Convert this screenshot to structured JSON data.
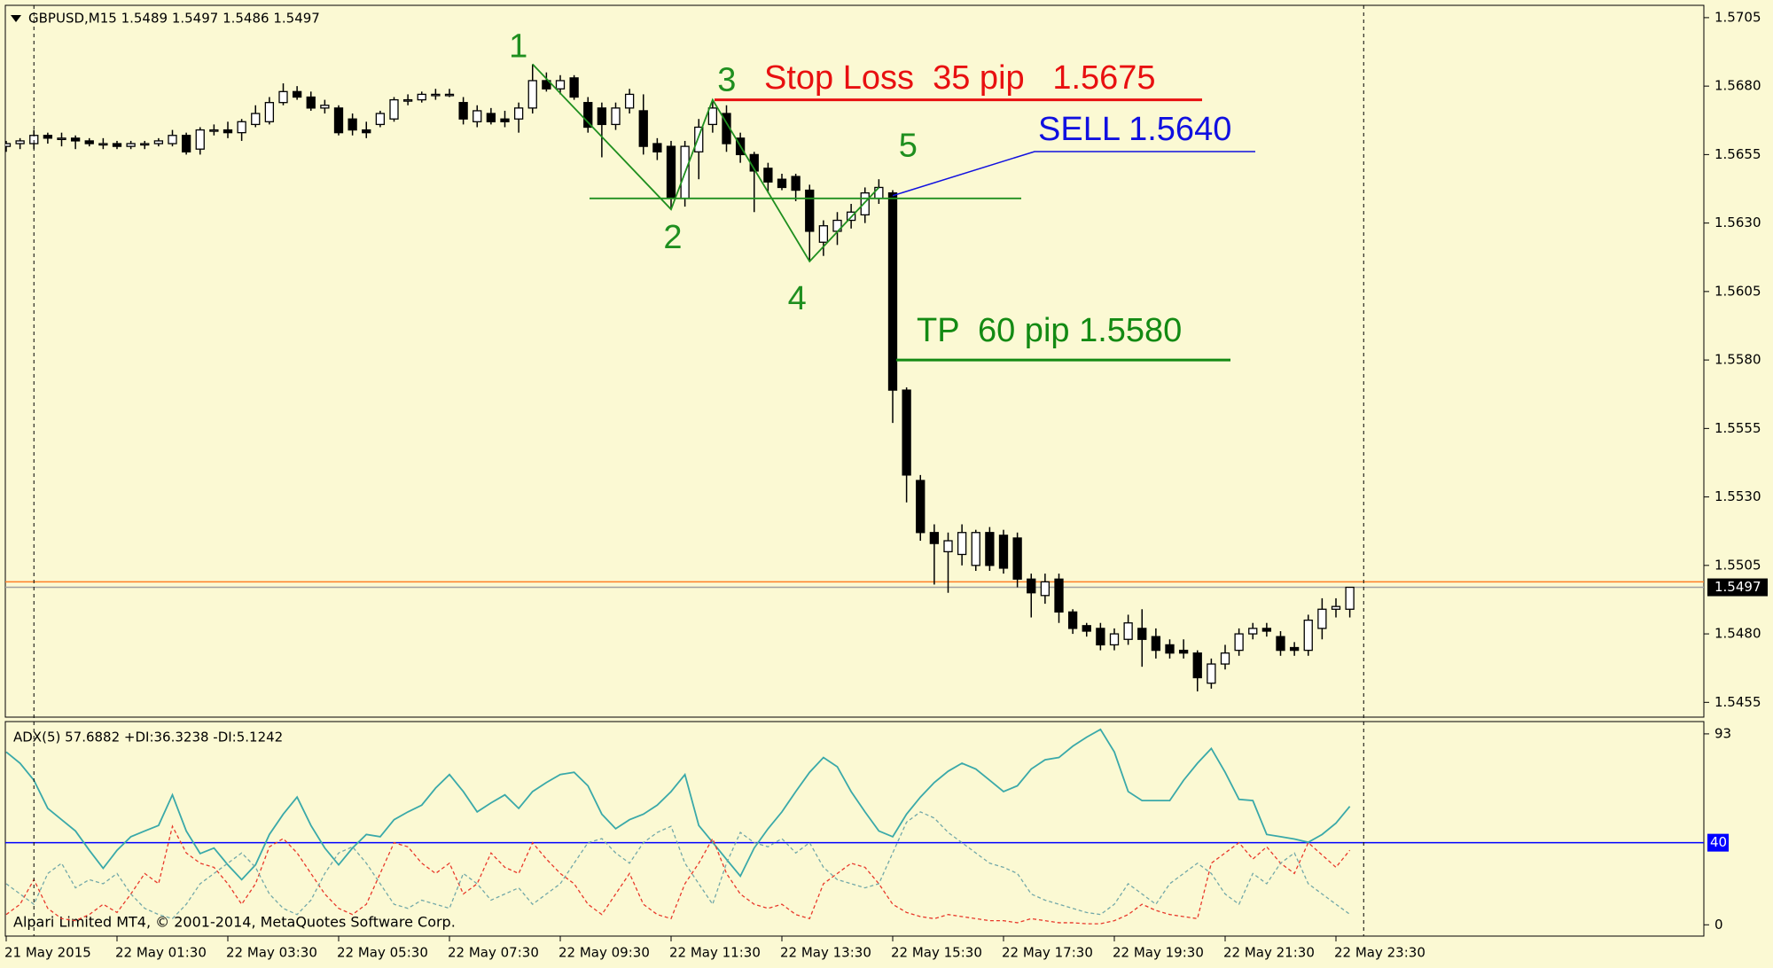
{
  "watermark": "Alpari Limited MT4, © 2001-2014, MetaQuotes Software Corp.",
  "chart_data": [
    {
      "type": "candlestick",
      "title": "GBPUSD,M15  1.5489 1.5497 1.5486 1.5497",
      "categories": [
        "21 May 2015",
        null,
        null,
        null,
        null,
        null,
        null,
        null,
        "22 May 01:30",
        null,
        null,
        null,
        null,
        null,
        null,
        null,
        "22 May 03:30",
        null,
        null,
        null,
        null,
        null,
        null,
        null,
        "22 May 05:30",
        null,
        null,
        null,
        null,
        null,
        null,
        null,
        "22 May 07:30",
        null,
        null,
        null,
        null,
        null,
        null,
        null,
        "22 May 09:30",
        null,
        null,
        null,
        null,
        null,
        null,
        null,
        "22 May 11:30",
        null,
        null,
        null,
        null,
        null,
        null,
        null,
        "22 May 13:30",
        null,
        null,
        null,
        null,
        null,
        null,
        null,
        "22 May 15:30",
        null,
        null,
        null,
        null,
        null,
        null,
        null,
        "22 May 17:30",
        null,
        null,
        null,
        null,
        null,
        null,
        null,
        "22 May 19:30",
        null,
        null,
        null,
        null,
        null,
        null,
        null,
        "22 May 21:30",
        null,
        null,
        null,
        null,
        null,
        null,
        null,
        "22 May 23:30",
        null
      ],
      "open": [
        1.5658,
        1.5659,
        1.5659,
        1.5662,
        1.5661,
        1.5661,
        1.566,
        1.5659,
        1.5659,
        1.5658,
        1.5659,
        1.5659,
        1.5659,
        1.5662,
        1.5657,
        1.5664,
        1.5664,
        1.5663,
        1.5666,
        1.5667,
        1.5674,
        1.5678,
        1.5676,
        1.5672,
        1.5672,
        1.5668,
        1.5664,
        1.5666,
        1.5668,
        1.5675,
        1.5675,
        1.5677,
        1.5677,
        1.5674,
        1.5667,
        1.567,
        1.5668,
        1.5668,
        1.5672,
        1.5682,
        1.5679,
        1.5683,
        1.5674,
        1.5672,
        1.5666,
        1.5672,
        1.5671,
        1.5659,
        1.5658,
        1.5639,
        1.5656,
        1.5666,
        1.567,
        1.5661,
        1.5655,
        1.565,
        1.5646,
        1.5647,
        1.5642,
        1.5623,
        1.5627,
        1.5631,
        1.5633,
        1.5639,
        1.5641,
        1.5569,
        1.5536,
        1.5517,
        1.551,
        1.5509,
        1.5505,
        1.5517,
        1.5516,
        1.5515,
        1.55,
        1.5494,
        1.55,
        1.5488,
        1.5483,
        1.5482,
        1.5476,
        1.5478,
        1.5482,
        1.5479,
        1.5476,
        1.5474,
        1.5473,
        1.5462,
        1.5469,
        1.5474,
        1.548,
        1.5482,
        1.5479,
        1.5475,
        1.5474,
        1.5482,
        1.5489,
        1.5489
      ],
      "high": [
        1.566,
        1.5661,
        1.5664,
        1.5663,
        1.5663,
        1.5662,
        1.5661,
        1.5661,
        1.566,
        1.566,
        1.566,
        1.5661,
        1.5664,
        1.5663,
        1.5665,
        1.5666,
        1.5667,
        1.5668,
        1.5673,
        1.5676,
        1.5681,
        1.568,
        1.5678,
        1.5675,
        1.5673,
        1.567,
        1.5667,
        1.5671,
        1.5676,
        1.5677,
        1.5678,
        1.5679,
        1.5679,
        1.5676,
        1.5673,
        1.5672,
        1.5671,
        1.5674,
        1.5688,
        1.5685,
        1.5684,
        1.5684,
        1.5676,
        1.5674,
        1.5674,
        1.5679,
        1.5677,
        1.5661,
        1.566,
        1.566,
        1.5668,
        1.5675,
        1.5673,
        1.5663,
        1.5656,
        1.5652,
        1.5648,
        1.5648,
        1.5644,
        1.5631,
        1.5634,
        1.5637,
        1.5643,
        1.5646,
        1.5642,
        1.557,
        1.5538,
        1.552,
        1.5517,
        1.552,
        1.5518,
        1.5519,
        1.5518,
        1.5517,
        1.5502,
        1.5502,
        1.5502,
        1.5489,
        1.5484,
        1.5484,
        1.5482,
        1.5487,
        1.5489,
        1.5482,
        1.5478,
        1.5478,
        1.5474,
        1.5471,
        1.5476,
        1.5482,
        1.5484,
        1.5484,
        1.5481,
        1.5477,
        1.5487,
        1.5493,
        1.5493,
        1.5497
      ],
      "low": [
        1.5656,
        1.5657,
        1.5657,
        1.5659,
        1.5658,
        1.5657,
        1.5658,
        1.5657,
        1.5657,
        1.5657,
        1.5657,
        1.5658,
        1.5658,
        1.5655,
        1.5655,
        1.5662,
        1.5661,
        1.566,
        1.5665,
        1.5666,
        1.5673,
        1.5675,
        1.5671,
        1.567,
        1.5662,
        1.5662,
        1.5661,
        1.5665,
        1.5667,
        1.5673,
        1.5674,
        1.5675,
        1.5676,
        1.5666,
        1.5665,
        1.5666,
        1.5665,
        1.5663,
        1.567,
        1.5678,
        1.5677,
        1.5675,
        1.5663,
        1.5654,
        1.5664,
        1.567,
        1.5655,
        1.5653,
        1.5635,
        1.5636,
        1.5646,
        1.5663,
        1.5656,
        1.5652,
        1.5634,
        1.5641,
        1.5642,
        1.5638,
        1.5616,
        1.5618,
        1.5622,
        1.5628,
        1.563,
        1.5637,
        1.5557,
        1.5528,
        1.5514,
        1.5498,
        1.5495,
        1.5505,
        1.5503,
        1.5503,
        1.5502,
        1.5497,
        1.5486,
        1.5491,
        1.5484,
        1.548,
        1.5479,
        1.5474,
        1.5474,
        1.5476,
        1.5468,
        1.5471,
        1.5471,
        1.5471,
        1.5459,
        1.546,
        1.5467,
        1.5472,
        1.5478,
        1.5479,
        1.5472,
        1.5472,
        1.5472,
        1.5478,
        1.5486,
        1.5486
      ],
      "close": [
        1.5659,
        1.566,
        1.5662,
        1.5661,
        1.5661,
        1.566,
        1.5659,
        1.5659,
        1.5658,
        1.5659,
        1.5659,
        1.566,
        1.5662,
        1.5656,
        1.5664,
        1.5664,
        1.5663,
        1.5667,
        1.567,
        1.5674,
        1.5678,
        1.5676,
        1.5672,
        1.5673,
        1.5663,
        1.5664,
        1.5663,
        1.567,
        1.5675,
        1.5675,
        1.5677,
        1.5677,
        1.5677,
        1.5668,
        1.5671,
        1.5667,
        1.5667,
        1.5672,
        1.5682,
        1.5679,
        1.5682,
        1.5676,
        1.5665,
        1.5666,
        1.5672,
        1.5677,
        1.5658,
        1.5656,
        1.5639,
        1.5658,
        1.5665,
        1.5672,
        1.5659,
        1.5655,
        1.5649,
        1.5645,
        1.5643,
        1.5642,
        1.5627,
        1.5629,
        1.5631,
        1.5634,
        1.5641,
        1.5643,
        1.5569,
        1.5538,
        1.5517,
        1.5513,
        1.5514,
        1.5517,
        1.5517,
        1.5505,
        1.5504,
        1.55,
        1.5495,
        1.5499,
        1.5488,
        1.5482,
        1.5481,
        1.5476,
        1.548,
        1.5484,
        1.5478,
        1.5474,
        1.5473,
        1.5473,
        1.5464,
        1.5469,
        1.5473,
        1.548,
        1.5482,
        1.5481,
        1.5474,
        1.5474,
        1.5485,
        1.5489,
        1.549,
        1.5497
      ],
      "up_color": "#ffffff",
      "down_color": "#000000",
      "ylim": [
        1.54496,
        1.57095
      ],
      "yticks": [
        1.5455,
        {
          "value": 1.548,
          "label": "1.5480"
        },
        1.5505,
        {
          "value": 1.553,
          "label": "1.5530"
        },
        1.5555,
        {
          "value": 1.558,
          "label": "1.5580"
        },
        1.5605,
        {
          "value": 1.563,
          "label": "1.5630"
        },
        1.5655,
        {
          "value": 1.568,
          "label": "1.5680"
        },
        1.5705
      ],
      "grid": false,
      "bid": 1.5497,
      "bid_color": "#a0a0a0",
      "ask": 1.5499,
      "ask_color": "#ff7f27",
      "wave": [
        {
          "label": "1",
          "index": 38,
          "value": 1.5688
        },
        {
          "label": "2",
          "index": 48,
          "value": 1.5635
        },
        {
          "label": "3",
          "index": 51,
          "value": 1.5675
        },
        {
          "label": "4",
          "index": 58,
          "value": 1.5616
        },
        {
          "label": "5",
          "index": 63,
          "value": 1.5643
        }
      ],
      "wave_color": "#1f8f1f",
      "neckline": {
        "value": 1.5639,
        "color": "#1f8f1f"
      },
      "stop_loss": {
        "text": "Stop Loss  35 pip   1.5675",
        "value": 1.5675,
        "color": "#e81010"
      },
      "sell": {
        "text": "SELL 1.5640",
        "index": 64,
        "value": 1.564,
        "color": "#1010e0"
      },
      "take_profit": {
        "text": "TP  60 pip 1.5580",
        "value": 1.558,
        "color": "#138a13"
      }
    },
    {
      "type": "line",
      "title": "ADX(5) 57.6882 +DI:36.3238 -DI:5.1242",
      "ylim": [
        -5.5,
        99
      ],
      "yticks": [
        0,
        93
      ],
      "level": 40,
      "level_color": "#0000ff",
      "series": [
        {
          "color": "#3aa9a9",
          "dash": false,
          "values": [
            84.2,
            78.7,
            70.4,
            56.7,
            51.2,
            45.7,
            36.3,
            27.5,
            36.3,
            42.9,
            45.7,
            48.4,
            63.3,
            45.7,
            34.7,
            37.4,
            29.2,
            22.0,
            29.2,
            44.0,
            53.9,
            62.2,
            48.4,
            37.4,
            29.2,
            37.4,
            44.0,
            42.9,
            51.2,
            55.0,
            58.3,
            66.6,
            73.2,
            64.9,
            55.0,
            59.4,
            63.3,
            56.7,
            64.9,
            69.3,
            73.2,
            74.3,
            67.7,
            53.9,
            46.8,
            51.2,
            53.9,
            58.3,
            64.9,
            73.2,
            48.4,
            40.2,
            31.9,
            23.7,
            37.4,
            46.8,
            55.0,
            64.9,
            74.3,
            81.5,
            77.0,
            64.9,
            55.0,
            45.7,
            42.9,
            53.9,
            62.2,
            69.3,
            74.8,
            78.7,
            75.9,
            70.4,
            64.9,
            67.7,
            75.9,
            80.4,
            81.5,
            87.0,
            91.4,
            95.2,
            84.2,
            64.9,
            60.5,
            60.5,
            60.5,
            70.4,
            78.7,
            85.9,
            74.3,
            61.1,
            60.5,
            44.0,
            42.9,
            41.8,
            40.2,
            44.0,
            49.5,
            57.6882
          ]
        },
        {
          "color": "#e8392b",
          "dash": true,
          "values": [
            5,
            10,
            22,
            8,
            3,
            2,
            5,
            10,
            6,
            15,
            25,
            20,
            48,
            35,
            30,
            28,
            20,
            10,
            20,
            38,
            42,
            35,
            25,
            15,
            8,
            5,
            10,
            25,
            40,
            38,
            30,
            25,
            30,
            15,
            20,
            35,
            28,
            25,
            40,
            32,
            25,
            20,
            10,
            5,
            15,
            25,
            10,
            5,
            3,
            20,
            30,
            42,
            25,
            15,
            10,
            8,
            10,
            5,
            3,
            20,
            25,
            30,
            28,
            20,
            10,
            6,
            4,
            3,
            5,
            4,
            3,
            2,
            2,
            1,
            3,
            2,
            1,
            1,
            0.5,
            0.5,
            2,
            5,
            10,
            7,
            5,
            4,
            3,
            30,
            35,
            40,
            32,
            38,
            30,
            25,
            40,
            34,
            28,
            36.3238
          ]
        },
        {
          "color": "#72a8a8",
          "dash": true,
          "values": [
            20,
            15,
            10,
            25,
            30,
            18,
            22,
            20,
            25,
            15,
            8,
            5,
            3,
            10,
            20,
            25,
            30,
            35,
            28,
            15,
            8,
            5,
            12,
            25,
            35,
            38,
            30,
            20,
            10,
            8,
            12,
            10,
            8,
            25,
            20,
            12,
            15,
            18,
            10,
            15,
            20,
            30,
            40,
            42,
            35,
            30,
            40,
            45,
            48,
            30,
            20,
            10,
            30,
            45,
            40,
            38,
            42,
            35,
            40,
            28,
            22,
            20,
            18,
            20,
            35,
            50,
            55,
            52,
            45,
            40,
            35,
            30,
            28,
            25,
            15,
            12,
            10,
            8,
            6,
            5,
            10,
            20,
            15,
            10,
            20,
            25,
            30,
            25,
            15,
            10,
            25,
            20,
            30,
            35,
            20,
            15,
            10,
            5.1242
          ]
        }
      ]
    }
  ]
}
